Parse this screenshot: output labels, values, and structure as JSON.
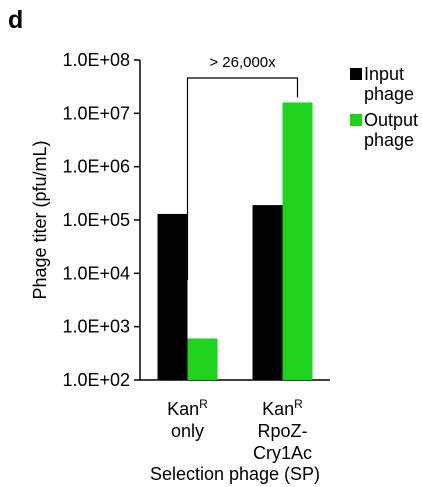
{
  "chart_data": {
    "type": "bar",
    "panel_label": "d",
    "ylabel": "Phage titer (pfu/mL)",
    "xlabel": "Selection phage (SP)",
    "yscale": "log",
    "ylim": [
      100,
      100000000
    ],
    "yticks": [
      "1.0E+02",
      "1.0E+03",
      "1.0E+04",
      "1.0E+05",
      "1.0E+06",
      "1.0E+07",
      "1.0E+08"
    ],
    "categories": [
      {
        "lines": [
          {
            "base": "Kan",
            "sup": "R"
          },
          {
            "base": "only",
            "sup": ""
          }
        ]
      },
      {
        "lines": [
          {
            "base": "Kan",
            "sup": "R"
          },
          {
            "base": "RpoZ-",
            "sup": ""
          },
          {
            "base": "Cry1Ac",
            "sup": ""
          }
        ]
      }
    ],
    "series": [
      {
        "name": "Input phage",
        "name_lines": [
          "Input",
          "phage"
        ],
        "color": "#000000",
        "values": [
          130000,
          190000
        ]
      },
      {
        "name": "Output phage",
        "name_lines": [
          "Output",
          "phage"
        ],
        "color": "#1ed21e",
        "values": [
          600,
          16000000
        ]
      }
    ],
    "legend_position": "top-right",
    "annotation": {
      "text": "> 26,000x"
    },
    "grid": false
  }
}
